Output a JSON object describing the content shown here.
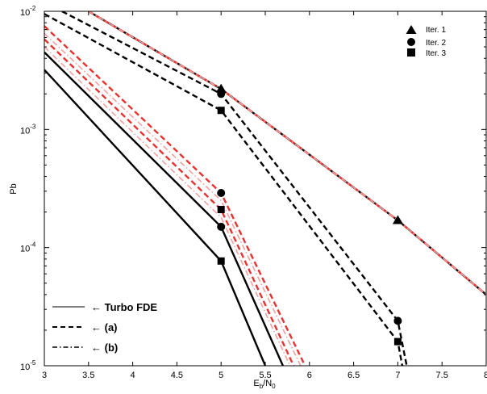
{
  "chart_data": {
    "type": "line",
    "xlabel_main": "E",
    "xlabel_sub1": "b",
    "xlabel_mid": "/N",
    "xlabel_sub2": "0",
    "ylabel": "Pb",
    "xlim": [
      3,
      8
    ],
    "ylim": [
      1e-05,
      0.01
    ],
    "yscale": "log",
    "grid": false,
    "xticks": [
      3,
      3.5,
      4,
      4.5,
      5,
      5.5,
      6,
      6.5,
      7,
      7.5,
      8
    ],
    "xtick_labels": [
      "3",
      "3.5",
      "4",
      "4.5",
      "5",
      "5.5",
      "6",
      "6.5",
      "7",
      "7.5",
      "8"
    ],
    "yticks": [
      1e-05,
      0.0001,
      0.001,
      0.01
    ],
    "ytick_labels": [
      {
        "base": "10",
        "exp": "-5"
      },
      {
        "base": "10",
        "exp": "-4"
      },
      {
        "base": "10",
        "exp": "-3"
      },
      {
        "base": "10",
        "exp": "-2"
      }
    ],
    "marker_legend": {
      "position": "top-right",
      "entries": [
        {
          "label": "Iter. 1",
          "marker": "triangle"
        },
        {
          "label": "Iter. 2",
          "marker": "circle"
        },
        {
          "label": "Iter. 3",
          "marker": "square"
        }
      ]
    },
    "style_legend": {
      "position": "bottom-left",
      "entries": [
        {
          "label": "Turbo FDE",
          "style": "solid",
          "arrow": "←"
        },
        {
          "label": "(a)",
          "style": "dashed",
          "arrow": "←"
        },
        {
          "label": "(b)",
          "style": "dashdot",
          "arrow": "←"
        }
      ]
    },
    "series": [
      {
        "style": "solid",
        "color": "#000000",
        "marker": "triangle",
        "x": [
          3.5,
          5,
          7,
          8
        ],
        "y": [
          0.01,
          0.0022,
          0.00017,
          4e-05
        ],
        "marker_x": [
          5,
          7
        ]
      },
      {
        "style": "dashed",
        "color": "#e8322f",
        "marker": "triangle",
        "x": [
          3.5,
          5,
          7,
          8
        ],
        "y": [
          0.01,
          0.0022,
          0.00017,
          4e-05
        ],
        "marker_x": []
      },
      {
        "style": "dashdot",
        "color": "#f2a0a0",
        "marker": "triangle",
        "x": [
          3.5,
          5,
          7,
          8
        ],
        "y": [
          0.01,
          0.0022,
          0.00017,
          4e-05
        ],
        "marker_x": []
      },
      {
        "style": "dashed",
        "color": "#000000",
        "marker": "circle",
        "x": [
          3.2,
          5,
          7,
          7.1
        ],
        "y": [
          0.01,
          0.002,
          2.4e-05,
          1e-05
        ],
        "marker_x": [
          5,
          7
        ]
      },
      {
        "style": "dashed",
        "color": "#000000",
        "marker": "square",
        "x": [
          3.0,
          5,
          7,
          7.05
        ],
        "y": [
          0.0095,
          0.00145,
          1.6e-05,
          1e-05
        ],
        "marker_x": [
          5,
          7
        ]
      },
      {
        "style": "solid",
        "color": "#000000",
        "marker": "circle",
        "x": [
          3,
          5,
          5.7
        ],
        "y": [
          0.0045,
          0.00015,
          1e-05
        ],
        "marker_x": [
          5
        ]
      },
      {
        "style": "solid",
        "color": "#000000",
        "marker": "square",
        "x": [
          3,
          5,
          5.5
        ],
        "y": [
          0.0032,
          7.7e-05,
          1e-05
        ],
        "marker_x": [
          5
        ]
      },
      {
        "style": "dashed",
        "color": "#e8322f",
        "marker": "circle",
        "x": [
          3,
          5,
          5.95
        ],
        "y": [
          0.0075,
          0.00029,
          1e-05
        ],
        "marker_x": [
          5
        ]
      },
      {
        "style": "dashdot",
        "color": "#f2a0a0",
        "marker": "circle",
        "x": [
          3,
          5,
          5.9
        ],
        "y": [
          0.0065,
          0.00025,
          1e-05
        ],
        "marker_x": []
      },
      {
        "style": "dashed",
        "color": "#e8322f",
        "marker": "square",
        "x": [
          3,
          5,
          5.82
        ],
        "y": [
          0.0058,
          0.00021,
          1e-05
        ],
        "marker_x": [
          5
        ]
      },
      {
        "style": "dashdot",
        "color": "#f2a0a0",
        "marker": "square",
        "x": [
          3,
          5,
          5.78
        ],
        "y": [
          0.005,
          0.00018,
          1e-05
        ],
        "marker_x": []
      }
    ]
  }
}
